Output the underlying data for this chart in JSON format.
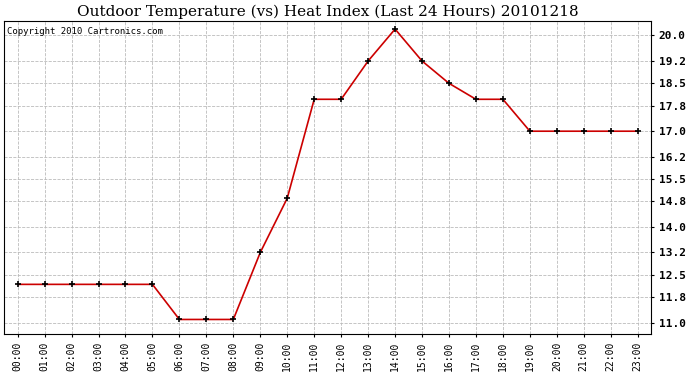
{
  "title": "Outdoor Temperature (vs) Heat Index (Last 24 Hours) 20101218",
  "copyright": "Copyright 2010 Cartronics.com",
  "x_labels": [
    "00:00",
    "01:00",
    "02:00",
    "03:00",
    "04:00",
    "05:00",
    "06:00",
    "07:00",
    "08:00",
    "09:00",
    "10:00",
    "11:00",
    "12:00",
    "13:00",
    "14:00",
    "15:00",
    "16:00",
    "17:00",
    "18:00",
    "19:00",
    "20:00",
    "21:00",
    "22:00",
    "23:00"
  ],
  "y_values": [
    12.2,
    12.2,
    12.2,
    12.2,
    12.2,
    12.2,
    11.1,
    11.1,
    11.1,
    13.2,
    14.9,
    18.0,
    18.0,
    19.2,
    20.2,
    19.2,
    18.5,
    18.0,
    18.0,
    17.0,
    17.0,
    17.0,
    17.0,
    17.0
  ],
  "y_ticks": [
    11.0,
    11.8,
    12.5,
    13.2,
    14.0,
    14.8,
    15.5,
    16.2,
    17.0,
    17.8,
    18.5,
    19.2,
    20.0
  ],
  "ylim": [
    10.65,
    20.45
  ],
  "line_color": "#cc0000",
  "marker_color": "#000000",
  "background_color": "#ffffff",
  "grid_color": "#bbbbbb",
  "title_fontsize": 11,
  "copyright_fontsize": 6.5,
  "tick_fontsize": 7,
  "ytick_fontsize": 8
}
